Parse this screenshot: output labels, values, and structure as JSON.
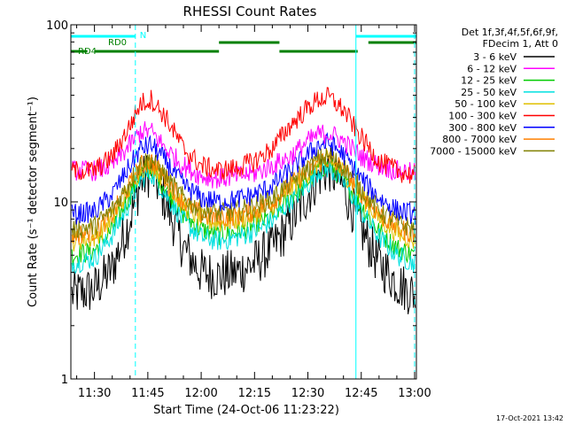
{
  "chart_data": {
    "type": "line",
    "title": "RHESSI Count Rates",
    "xlabel": "Start Time (24-Oct-06 11:23:22)",
    "ylabel": "Count Rate (s⁻¹ detector segment⁻¹)",
    "y_scale": "log",
    "ylim": [
      1,
      100
    ],
    "xlim": [
      "11:23:22",
      "13:00:30"
    ],
    "x_ticks": [
      "11:30",
      "11:45",
      "12:00",
      "12:15",
      "12:30",
      "12:45",
      "13:00"
    ],
    "y_ticks": [
      "1",
      "10",
      "100"
    ],
    "legend_header": [
      "Det 1f,3f,4f,5f,6f,9f,",
      "FDecim 1, Att 0"
    ],
    "legend_position": "right",
    "series": [
      {
        "name": "3 - 6 keV",
        "color": "#000000",
        "x": [
          "11:24",
          "11:30",
          "11:35",
          "11:40",
          "11:43",
          "11:46",
          "11:50",
          "11:55",
          "12:00",
          "12:05",
          "12:10",
          "12:15",
          "12:20",
          "12:25",
          "12:30",
          "12:33",
          "12:36",
          "12:40",
          "12:45",
          "12:50",
          "12:55",
          "13:00"
        ],
        "values": [
          3.0,
          3.2,
          4.2,
          8,
          13,
          15,
          10,
          5.5,
          4.0,
          3.8,
          4.0,
          4.5,
          5.5,
          7.5,
          11,
          14,
          15.5,
          12,
          7,
          4.5,
          3.5,
          3.0
        ]
      },
      {
        "name": "6 - 12 keV",
        "color": "#ff00ff",
        "x": [
          "11:24",
          "11:30",
          "11:35",
          "11:40",
          "11:43",
          "11:46",
          "11:50",
          "11:55",
          "12:00",
          "12:05",
          "12:10",
          "12:15",
          "12:20",
          "12:25",
          "12:30",
          "12:33",
          "12:36",
          "12:40",
          "12:45",
          "12:50",
          "12:55",
          "13:00"
        ],
        "values": [
          15,
          15,
          16,
          21,
          25,
          25,
          20,
          16,
          14,
          13.5,
          14,
          14.5,
          16,
          18,
          22,
          24,
          24.5,
          22,
          18,
          16,
          15,
          14.5
        ]
      },
      {
        "name": "12 - 25 keV",
        "color": "#00cc00",
        "x": [
          "11:24",
          "11:30",
          "11:35",
          "11:40",
          "11:43",
          "11:46",
          "11:50",
          "11:55",
          "12:00",
          "12:05",
          "12:10",
          "12:15",
          "12:20",
          "12:25",
          "12:30",
          "12:33",
          "12:36",
          "12:40",
          "12:45",
          "12:50",
          "12:55",
          "13:00"
        ],
        "values": [
          5.0,
          5.3,
          7,
          11,
          14.5,
          15.5,
          12,
          8.5,
          7,
          6.5,
          6.8,
          7.3,
          8.3,
          10.5,
          13,
          15.5,
          16,
          13.5,
          9.5,
          6.8,
          5.5,
          5.0
        ]
      },
      {
        "name": "25 - 50 keV",
        "color": "#00e0e0",
        "x": [
          "11:24",
          "11:30",
          "11:35",
          "11:40",
          "11:43",
          "11:46",
          "11:50",
          "11:55",
          "12:00",
          "12:05",
          "12:10",
          "12:15",
          "12:20",
          "12:25",
          "12:30",
          "12:33",
          "12:36",
          "12:40",
          "12:45",
          "12:50",
          "12:55",
          "13:00"
        ],
        "values": [
          4.5,
          4.8,
          6.5,
          10,
          13.5,
          14.5,
          11,
          7.8,
          6.3,
          6.0,
          6.3,
          6.8,
          7.8,
          10,
          12.5,
          15,
          15.5,
          13,
          8.8,
          6.3,
          5.0,
          4.5
        ]
      },
      {
        "name": "50 - 100 keV",
        "color": "#e0c000",
        "x": [
          "11:24",
          "11:30",
          "11:35",
          "11:40",
          "11:43",
          "11:46",
          "11:50",
          "11:55",
          "12:00",
          "12:05",
          "12:10",
          "12:15",
          "12:20",
          "12:25",
          "12:30",
          "12:33",
          "12:36",
          "12:40",
          "12:45",
          "12:50",
          "12:55",
          "13:00"
        ],
        "values": [
          6.0,
          6.3,
          8,
          12,
          15.5,
          16.5,
          13,
          9.5,
          8,
          7.6,
          7.9,
          8.4,
          9.5,
          11.8,
          14.5,
          16.5,
          17,
          14.8,
          10.8,
          8,
          6.7,
          6.0
        ]
      },
      {
        "name": "100 - 300 keV",
        "color": "#ff0000",
        "x": [
          "11:24",
          "11:30",
          "11:35",
          "11:40",
          "11:43",
          "11:46",
          "11:50",
          "11:55",
          "12:00",
          "12:05",
          "12:10",
          "12:15",
          "12:20",
          "12:25",
          "12:30",
          "12:33",
          "12:36",
          "12:40",
          "12:45",
          "12:50",
          "12:55",
          "13:00"
        ],
        "values": [
          15,
          15,
          18,
          27,
          36,
          38,
          30,
          20,
          16,
          15,
          15.5,
          17,
          20,
          27,
          34,
          38,
          39,
          33,
          23,
          17,
          15,
          14
        ]
      },
      {
        "name": "300 - 800 keV",
        "color": "#0000ff",
        "x": [
          "11:24",
          "11:30",
          "11:35",
          "11:40",
          "11:43",
          "11:46",
          "11:50",
          "11:55",
          "12:00",
          "12:05",
          "12:10",
          "12:15",
          "12:20",
          "12:25",
          "12:30",
          "12:33",
          "12:36",
          "12:40",
          "12:45",
          "12:50",
          "12:55",
          "13:00"
        ],
        "values": [
          8.5,
          8.8,
          11,
          16,
          20,
          21,
          17,
          12.5,
          10.5,
          10,
          10.3,
          11,
          12.3,
          15,
          18.5,
          21,
          21.5,
          18.5,
          13.5,
          10.5,
          9,
          8.5
        ]
      },
      {
        "name": "800 - 7000 keV",
        "color": "#ff8000",
        "x": [
          "11:24",
          "11:30",
          "11:35",
          "11:40",
          "11:43",
          "11:46",
          "11:50",
          "11:55",
          "12:00",
          "12:05",
          "12:10",
          "12:15",
          "12:20",
          "12:25",
          "12:30",
          "12:33",
          "12:36",
          "12:40",
          "12:45",
          "12:50",
          "12:55",
          "13:00"
        ],
        "values": [
          6.5,
          6.8,
          8.5,
          12.5,
          16,
          17,
          13.5,
          10,
          8.5,
          8.1,
          8.4,
          8.9,
          10,
          12.3,
          15,
          17,
          17.5,
          15.3,
          11.3,
          8.5,
          7.2,
          6.5
        ]
      },
      {
        "name": "7000 - 15000 keV",
        "color": "#808000",
        "x": [
          "11:24",
          "11:30",
          "11:35",
          "11:40",
          "11:43",
          "11:46",
          "11:50",
          "11:55",
          "12:00",
          "12:05",
          "12:10",
          "12:15",
          "12:20",
          "12:25",
          "12:30",
          "12:33",
          "12:36",
          "12:40",
          "12:45",
          "12:50",
          "12:55",
          "13:00"
        ],
        "values": [
          7.0,
          7.3,
          9,
          13,
          16.5,
          17.5,
          14,
          10.5,
          9,
          8.6,
          8.9,
          9.4,
          10.5,
          12.8,
          15.5,
          17.5,
          18,
          15.8,
          11.8,
          9,
          7.7,
          7.0
        ]
      }
    ],
    "annotations": {
      "flag_labels": [
        "N",
        "RD0",
        "RD4"
      ],
      "night_bar_color": "#00ffff",
      "rd_bar_color": "#008000",
      "night_segments": [
        [
          "11:23:22",
          "11:41:30"
        ],
        [
          "12:43:30",
          "13:00:30"
        ]
      ],
      "rd0_segments": [
        [
          "12:05",
          "12:22"
        ],
        [
          "12:47",
          "13:00:30"
        ]
      ],
      "rd4_segments": [
        [
          "11:23:22",
          "11:28"
        ],
        [
          "11:30",
          "12:05"
        ],
        [
          "12:22",
          "12:44"
        ]
      ],
      "solid_vertical_lines": [
        "11:23:22",
        "12:43:30"
      ],
      "dashed_vertical_lines": [
        "11:41:30",
        "13:00:00"
      ]
    }
  },
  "footer": {
    "timestamp": "17-Oct-2021 13:42"
  }
}
